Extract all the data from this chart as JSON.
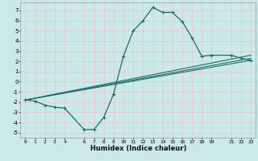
{
  "title": "",
  "xlabel": "Humidex (Indice chaleur)",
  "bg_color": "#cce8e8",
  "grid_color": "#e8c8c8",
  "line_color": "#1a6b6b",
  "xlim": [
    -0.5,
    23.5
  ],
  "ylim": [
    -5.5,
    7.8
  ],
  "xticks": [
    0,
    1,
    2,
    3,
    4,
    6,
    7,
    8,
    9,
    10,
    11,
    12,
    13,
    14,
    15,
    16,
    17,
    18,
    19,
    21,
    22,
    23
  ],
  "yticks": [
    -5,
    -4,
    -3,
    -2,
    -1,
    0,
    1,
    2,
    3,
    4,
    5,
    6,
    7
  ],
  "curve1_x": [
    0,
    1,
    2,
    3,
    4,
    6,
    7,
    8,
    9,
    10,
    11,
    12,
    13,
    14,
    15,
    16,
    17,
    18,
    19,
    21,
    22,
    23
  ],
  "curve1_y": [
    -1.8,
    -1.9,
    -2.3,
    -2.5,
    -2.6,
    -4.7,
    -4.7,
    -3.5,
    -1.2,
    2.5,
    5.0,
    6.0,
    7.3,
    6.8,
    6.8,
    5.9,
    4.3,
    2.5,
    2.6,
    2.6,
    2.3,
    2.1
  ],
  "line1_x": [
    0,
    23
  ],
  "line1_y": [
    -1.8,
    2.1
  ],
  "line2_x": [
    0,
    23
  ],
  "line2_y": [
    -1.8,
    2.3
  ],
  "line3_x": [
    0,
    23
  ],
  "line3_y": [
    -1.8,
    2.6
  ]
}
